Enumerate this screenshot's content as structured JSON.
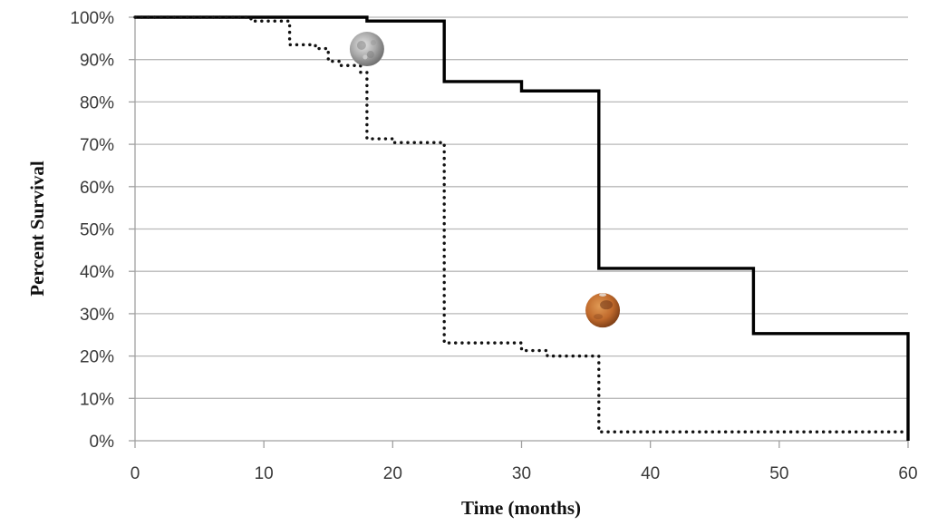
{
  "chart_data": {
    "type": "line",
    "subtype": "kaplan-meier-step",
    "title": "",
    "xlabel": "Time (months)",
    "ylabel": "Percent Survival",
    "xlim": [
      0,
      60
    ],
    "ylim": [
      0,
      100
    ],
    "x_ticks": [
      0,
      10,
      20,
      30,
      40,
      50,
      60
    ],
    "x_tick_labels": [
      "0",
      "10",
      "20",
      "30",
      "40",
      "50",
      "60"
    ],
    "y_ticks": [
      0,
      10,
      20,
      30,
      40,
      50,
      60,
      70,
      80,
      90,
      100
    ],
    "y_tick_labels": [
      "0%",
      "10%",
      "20%",
      "30%",
      "40%",
      "50%",
      "60%",
      "70%",
      "80%",
      "90%",
      "100%"
    ],
    "grid": true,
    "legend": "none (series marked by icons)",
    "series": [
      {
        "name": "Mars",
        "style": "solid",
        "color": "#000000",
        "marker_icon": "mars-icon",
        "steps": [
          {
            "x": 0,
            "y": 100
          },
          {
            "x": 18,
            "y": 99.1
          },
          {
            "x": 24,
            "y": 84.8
          },
          {
            "x": 30,
            "y": 82.6
          },
          {
            "x": 36,
            "y": 40.7
          },
          {
            "x": 48,
            "y": 25.3
          },
          {
            "x": 60,
            "y": 0
          }
        ]
      },
      {
        "name": "Moon",
        "style": "dotted",
        "color": "#111111",
        "marker_icon": "moon-icon",
        "steps": [
          {
            "x": 0,
            "y": 100
          },
          {
            "x": 9,
            "y": 99.1
          },
          {
            "x": 12,
            "y": 93.5
          },
          {
            "x": 14,
            "y": 92.6
          },
          {
            "x": 15,
            "y": 89.6
          },
          {
            "x": 16,
            "y": 88.6
          },
          {
            "x": 17.5,
            "y": 87.0
          },
          {
            "x": 18,
            "y": 71.3
          },
          {
            "x": 20,
            "y": 70.4
          },
          {
            "x": 24,
            "y": 23.1
          },
          {
            "x": 30,
            "y": 21.3
          },
          {
            "x": 32,
            "y": 20.0
          },
          {
            "x": 36,
            "y": 2.1
          },
          {
            "x": 60,
            "y": 2.1
          }
        ]
      }
    ],
    "annotations": [
      {
        "icon": "moon-icon",
        "x": 18,
        "y": 92.5,
        "label": "Moon"
      },
      {
        "icon": "mars-icon",
        "x": 36.3,
        "y": 30.8,
        "label": "Mars"
      }
    ]
  }
}
